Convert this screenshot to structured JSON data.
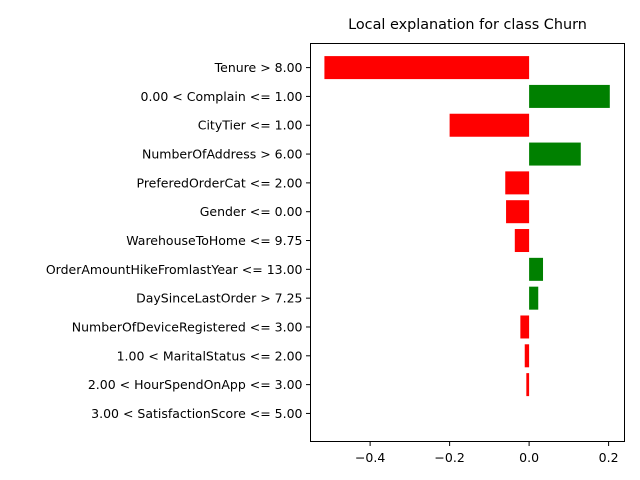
{
  "chart_data": {
    "type": "bar",
    "orientation": "horizontal",
    "title": "Local explanation for class Churn",
    "xlabel": "",
    "ylabel": "",
    "xlim": [
      -0.55,
      0.24
    ],
    "xticks": [
      -0.4,
      -0.2,
      0.0,
      0.2
    ],
    "xtick_labels": [
      "−0.4",
      "−0.2",
      "0.0",
      "0.2"
    ],
    "grid": false,
    "colors": {
      "positive": "#008000",
      "negative": "#ff0000"
    },
    "categories": [
      "Tenure > 8.00",
      "0.00 < Complain <= 1.00",
      "CityTier <= 1.00",
      "NumberOfAddress > 6.00",
      "PreferedOrderCat <= 2.00",
      "Gender <= 0.00",
      "WarehouseToHome <= 9.75",
      "OrderAmountHikeFromlastYear <= 13.00",
      "DaySinceLastOrder > 7.25",
      "NumberOfDeviceRegistered <= 3.00",
      "1.00 < MaritalStatus <= 2.00",
      "2.00 < HourSpendOnApp <= 3.00",
      "3.00 < SatisfactionScore <= 5.00"
    ],
    "values": [
      -0.515,
      0.203,
      -0.2,
      0.13,
      -0.06,
      -0.058,
      -0.036,
      0.035,
      0.023,
      -0.022,
      -0.011,
      -0.007,
      0.0
    ]
  }
}
